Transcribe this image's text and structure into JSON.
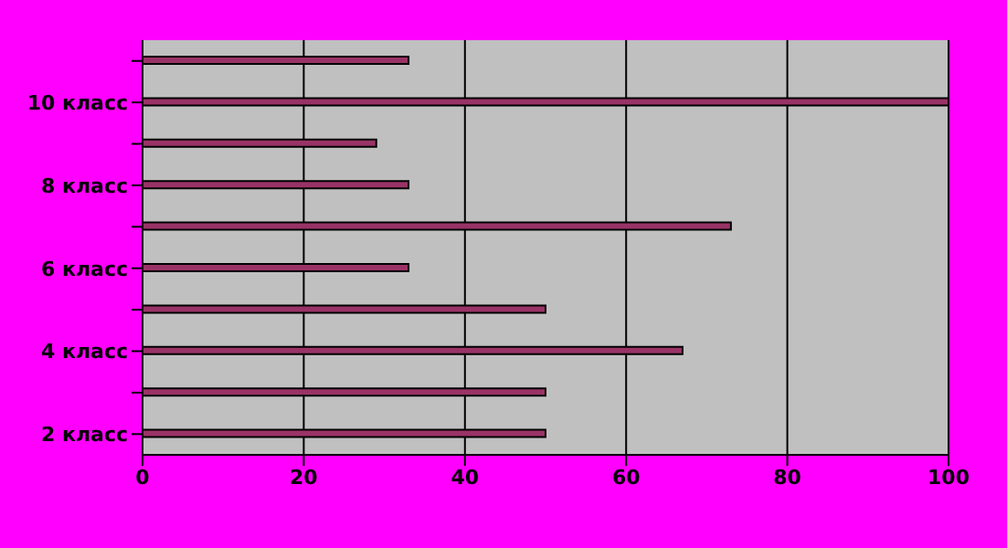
{
  "chart_data": {
    "type": "bar",
    "orientation": "horizontal",
    "categories": [
      null,
      "10 класс",
      null,
      "8 класс",
      null,
      "6 класс",
      null,
      "4 класс",
      null,
      "2 класс"
    ],
    "values": [
      33,
      100,
      29,
      33,
      73,
      33,
      50,
      67,
      50,
      50
    ],
    "color": "#993366",
    "xlim": [
      0,
      100
    ],
    "xticks": [
      0,
      20,
      40,
      60,
      80,
      100
    ],
    "grid": "x",
    "legend": false
  }
}
